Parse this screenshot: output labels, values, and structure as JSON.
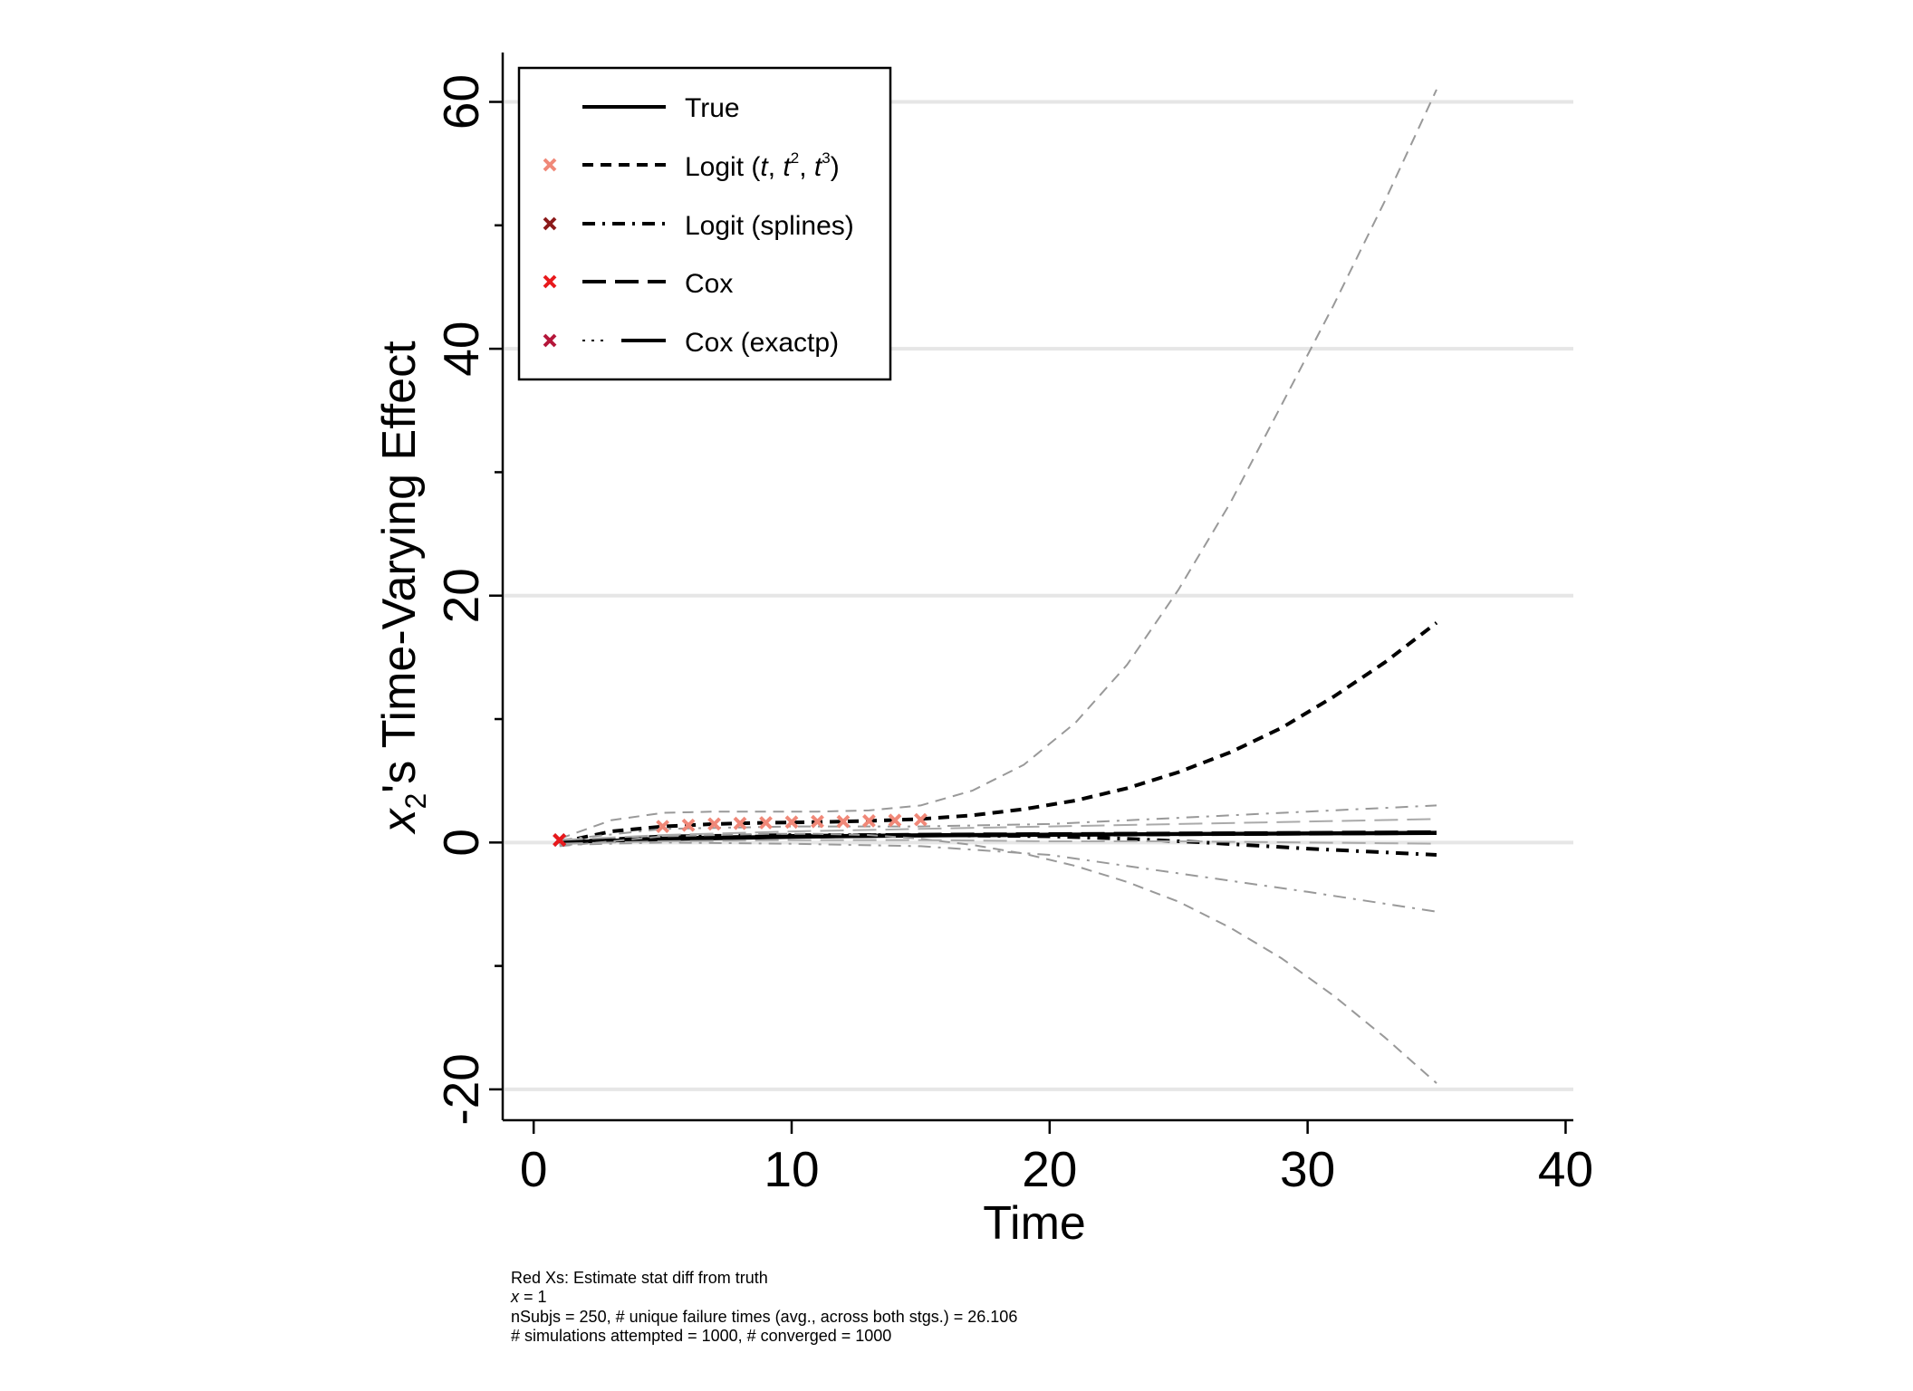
{
  "chart_data": {
    "type": "line",
    "xlabel": "Time",
    "ylabel_parts": {
      "var": "x",
      "sub": "2",
      "rest": "'s Time-Varying Effect"
    },
    "xlim": [
      -1.2,
      40.3
    ],
    "ylim": [
      -22.5,
      64
    ],
    "x_ticks": [
      0,
      10,
      20,
      30,
      40
    ],
    "x_tick_labels": [
      "0",
      "10",
      "20",
      "30",
      "40"
    ],
    "y_ticks": [
      -20,
      0,
      20,
      40,
      60
    ],
    "y_tick_labels": [
      "-20",
      "0",
      "20",
      "40",
      "60"
    ],
    "y_minor_ticks": [
      -10,
      10,
      30,
      50
    ],
    "grid": "horizontal",
    "legend_position": "top-left",
    "legend": [
      {
        "label": "True",
        "marker": false,
        "marker_color": "",
        "dash": "solid"
      },
      {
        "label_parts": [
          "Logit (",
          "t",
          ", ",
          "t",
          "2",
          ", ",
          "t",
          "3",
          ")"
        ],
        "marker": true,
        "marker_color": "#f08878",
        "dash": "dash"
      },
      {
        "label": "Logit (splines)",
        "marker": true,
        "marker_color": "#8b1a1a",
        "dash": "dashdot"
      },
      {
        "label": "Cox",
        "marker": true,
        "marker_color": "#e8191c",
        "dash": "longdash"
      },
      {
        "label": "Cox (exactp)",
        "marker": true,
        "marker_color": "#b5163a",
        "dash": "dotsolid"
      }
    ],
    "series": [
      {
        "name": "True",
        "color": "#000000",
        "style": "solid",
        "width": 4,
        "x": [
          1,
          5,
          10,
          15,
          20,
          25,
          30,
          35
        ],
        "y": [
          0.05,
          0.25,
          0.45,
          0.55,
          0.62,
          0.68,
          0.72,
          0.76
        ]
      },
      {
        "name": "Logit (t, t2, t3)",
        "color": "#000000",
        "style": "dash",
        "width": 4,
        "x": [
          1,
          3,
          5,
          7,
          9,
          11,
          13,
          15,
          17,
          19,
          21,
          23,
          25,
          27,
          29,
          31,
          33,
          35
        ],
        "y": [
          0.0,
          0.9,
          1.3,
          1.5,
          1.6,
          1.65,
          1.75,
          1.9,
          2.2,
          2.7,
          3.4,
          4.4,
          5.7,
          7.3,
          9.3,
          11.8,
          14.6,
          17.8
        ]
      },
      {
        "name": "Logit (splines)",
        "color": "#000000",
        "style": "dashdot",
        "width": 4,
        "x": [
          1,
          5,
          10,
          15,
          20,
          23,
          26,
          30,
          35
        ],
        "y": [
          0.0,
          0.5,
          0.6,
          0.6,
          0.5,
          0.3,
          0.0,
          -0.5,
          -1.0
        ]
      },
      {
        "name": "Cox",
        "color": "#000000",
        "style": "longdash",
        "width": 5,
        "x": [
          1,
          5,
          10,
          15,
          20,
          25,
          30,
          35
        ],
        "y": [
          0.0,
          0.3,
          0.5,
          0.6,
          0.65,
          0.7,
          0.75,
          0.8
        ]
      },
      {
        "name": "Cox (exactp)",
        "color": "#000000",
        "style": "solid",
        "width": 4,
        "x": [
          1,
          5,
          10,
          15,
          20,
          25,
          30,
          35
        ],
        "y": [
          0.0,
          0.3,
          0.5,
          0.6,
          0.65,
          0.7,
          0.75,
          0.8
        ]
      },
      {
        "name": "Logit (t, t2, t3) CI upper",
        "color": "#999999",
        "style": "dash",
        "width": 2,
        "x": [
          1,
          3,
          5,
          7,
          9,
          11,
          13,
          15,
          17,
          19,
          21,
          23,
          25,
          27,
          29,
          31,
          33,
          35
        ],
        "y": [
          0.3,
          1.8,
          2.4,
          2.5,
          2.5,
          2.5,
          2.6,
          3.0,
          4.2,
          6.3,
          9.7,
          14.4,
          20.5,
          27.5,
          35.5,
          43.5,
          52.0,
          61.0
        ]
      },
      {
        "name": "Logit (t, t2, t3) CI lower",
        "color": "#999999",
        "style": "dash",
        "width": 2,
        "x": [
          1,
          3,
          5,
          7,
          9,
          11,
          13,
          15,
          17,
          19,
          21,
          23,
          25,
          27,
          29,
          31,
          33,
          35
        ],
        "y": [
          -0.3,
          0.1,
          0.5,
          0.6,
          0.7,
          0.7,
          0.6,
          0.3,
          -0.2,
          -0.9,
          -1.9,
          -3.2,
          -4.8,
          -6.9,
          -9.4,
          -12.4,
          -15.8,
          -19.5
        ]
      },
      {
        "name": "Logit (splines) CI upper",
        "color": "#999999",
        "style": "dashdot",
        "width": 2,
        "x": [
          1,
          5,
          10,
          15,
          20,
          25,
          30,
          35
        ],
        "y": [
          0.2,
          1.1,
          1.3,
          1.3,
          1.5,
          2.0,
          2.5,
          3.0
        ]
      },
      {
        "name": "Logit (splines) CI lower",
        "color": "#999999",
        "style": "dashdot",
        "width": 2,
        "x": [
          1,
          5,
          10,
          15,
          20,
          25,
          30,
          35
        ],
        "y": [
          -0.2,
          0.0,
          -0.1,
          -0.3,
          -1.0,
          -2.5,
          -4.0,
          -5.6
        ]
      },
      {
        "name": "Cox CI upper",
        "color": "#aaaaaa",
        "style": "longdash",
        "width": 2,
        "x": [
          1,
          5,
          10,
          15,
          20,
          25,
          30,
          35
        ],
        "y": [
          0.2,
          0.6,
          0.9,
          1.1,
          1.3,
          1.5,
          1.7,
          1.9
        ]
      },
      {
        "name": "Cox CI lower",
        "color": "#aaaaaa",
        "style": "longdash",
        "width": 2,
        "x": [
          1,
          5,
          10,
          15,
          20,
          25,
          30,
          35
        ],
        "y": [
          -0.1,
          0.1,
          0.2,
          0.2,
          0.1,
          0.1,
          0.0,
          -0.1
        ]
      }
    ],
    "markers": [
      {
        "x": 1,
        "y": 0.2,
        "color": "#8b1a1a"
      },
      {
        "x": 1,
        "y": 0.2,
        "color": "#b5163a"
      },
      {
        "x": 1,
        "y": 0.2,
        "color": "#e8191c"
      },
      {
        "x": 5,
        "y": 1.3,
        "color": "#f08878"
      },
      {
        "x": 6,
        "y": 1.4,
        "color": "#f08878"
      },
      {
        "x": 7,
        "y": 1.5,
        "color": "#f08878"
      },
      {
        "x": 8,
        "y": 1.55,
        "color": "#f08878"
      },
      {
        "x": 9,
        "y": 1.6,
        "color": "#f08878"
      },
      {
        "x": 10,
        "y": 1.65,
        "color": "#f08878"
      },
      {
        "x": 11,
        "y": 1.7,
        "color": "#f08878"
      },
      {
        "x": 12,
        "y": 1.7,
        "color": "#f08878"
      },
      {
        "x": 13,
        "y": 1.75,
        "color": "#f08878"
      },
      {
        "x": 14,
        "y": 1.8,
        "color": "#f08878"
      },
      {
        "x": 15,
        "y": 1.85,
        "color": "#f08878"
      }
    ],
    "notes": [
      "Red Xs: Estimate stat diff from truth",
      {
        "var": "x",
        "rest": " = 1"
      },
      "nSubjs = 250, # unique failure times (avg., across both stgs.) = 26.106",
      "# simulations attempted = 1000, # converged = 1000"
    ]
  }
}
